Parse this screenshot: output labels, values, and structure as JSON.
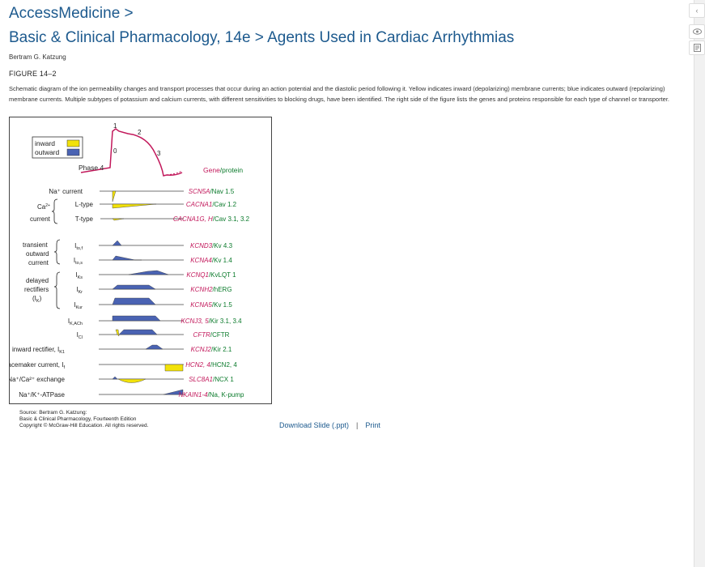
{
  "breadcrumb": "AccessMedicine >",
  "title": "Basic & Clinical Pharmacology, 14e > Agents Used in Cardiac Arrhythmias",
  "author": "Bertram G. Katzung",
  "figure_label": "FIGURE 14–2",
  "caption": "Schematic diagram of the ion permeability changes and transport processes that occur during an action potential and the diastolic period following it. Yellow indicates inward (depolarizing) membrane currents; blue indicates outward (repolarizing) membrane currents. Multiple subtypes of potassium and calcium currents, with different sensitivities to blocking drugs, have been identified. The right side of the figure lists the genes and proteins responsible for each type of channel or transporter.",
  "figure": {
    "legend_inward": "inward",
    "legend_outward": "outward",
    "phase4": "Phase 4",
    "phase0": "0",
    "phase1": "1",
    "phase2": "2",
    "phase3": "3",
    "gene_header_gene": "Gene",
    "gene_header_protein": "/protein",
    "ca_label": "Ca",
    "ca_sup": "2+",
    "current_word": "current",
    "transient": "transient",
    "outward": "outward",
    "current2": "current",
    "delayed": "delayed",
    "rectifiers": "rectifiers",
    "ik_paren": "(I",
    "ik_sub": "K",
    "ik_close": ")",
    "rows": [
      {
        "label": "Na⁺ current",
        "gene": "SCN5A",
        "protein": "/Nav 1.5"
      },
      {
        "label": "L-type",
        "gene": "CACNA1",
        "protein": "/Cav 1.2"
      },
      {
        "label": "T-type",
        "gene": "CACNA1G, H",
        "protein": "/Cav 3.1, 3.2"
      },
      {
        "label_main": "I",
        "label_sub": "to,f",
        "gene": "KCND3",
        "protein": "/Kv 4.3"
      },
      {
        "label_main": "I",
        "label_sub": "to,s",
        "gene": "KCNA4",
        "protein": "/Kv 1.4"
      },
      {
        "label_main": "I",
        "label_sub": "Ks",
        "gene": "KCNQ1",
        "protein": "/KvLQT 1"
      },
      {
        "label_main": "I",
        "label_sub": "Kr",
        "gene": "KCNH2",
        "protein": "/hERG"
      },
      {
        "label_main": "I",
        "label_sub": "Kur",
        "gene": "KCNA5",
        "protein": "/Kv 1.5"
      },
      {
        "label_main": "I",
        "label_sub": "K,ACh",
        "gene": "KCNJ3, 5",
        "protein": "/Kir 3.1, 3.4"
      },
      {
        "label_main": "I",
        "label_sub": "Cl",
        "gene": "CFTR",
        "protein": "/CFTR"
      },
      {
        "label_main": "inward rectifier, I",
        "label_sub": "K1",
        "gene": "KCNJ2",
        "protein": "/Kir 2.1"
      },
      {
        "label_main": "pacemaker current, I",
        "label_sub": "f",
        "gene": "HCN2, 4",
        "protein": "/HCN2, 4"
      },
      {
        "label_main": "Na⁺/Ca²⁺ exchange",
        "gene": "SLC8A1",
        "protein": "/NCX 1"
      },
      {
        "label_main": "Na⁺/K⁺-ATPase",
        "gene": "NKAIN1-4",
        "protein": "/Na, K-pump"
      }
    ]
  },
  "source": {
    "line1": "Source: Bertram G. Katzung:",
    "line2": "Basic & Clinical Pharmacology, Fourteenth Edition",
    "line3": "Copyright © McGraw-Hill Education. All rights reserved."
  },
  "links": {
    "download": "Download Slide (.ppt)",
    "separator": "|",
    "print": "Print"
  },
  "colors": {
    "link": "#1d5a8e",
    "inward": "#f2e20a",
    "outward": "#4a63b3",
    "gene": "#c2185b",
    "protein": "#0a7a2b"
  }
}
